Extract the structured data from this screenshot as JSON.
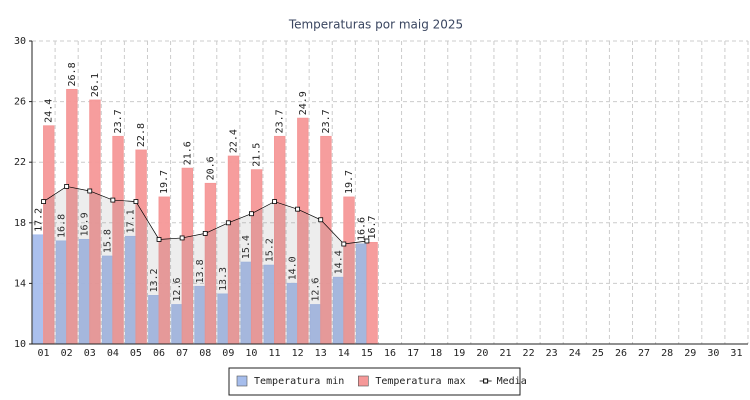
{
  "chart_data": {
    "type": "bar",
    "title": "Temperaturas por maig 2025",
    "categories": [
      "01",
      "02",
      "03",
      "04",
      "05",
      "06",
      "07",
      "08",
      "09",
      "10",
      "11",
      "12",
      "13",
      "14",
      "15",
      "16",
      "17",
      "18",
      "19",
      "20",
      "21",
      "22",
      "23",
      "24",
      "25",
      "26",
      "27",
      "28",
      "29",
      "30",
      "31"
    ],
    "series": [
      {
        "name": "Temperatura min",
        "color": "#a6bdec",
        "type": "bar",
        "values": [
          17.2,
          16.8,
          16.9,
          15.8,
          17.1,
          13.2,
          12.6,
          13.8,
          13.3,
          15.4,
          15.2,
          14.0,
          12.6,
          14.4,
          16.6,
          null,
          null,
          null,
          null,
          null,
          null,
          null,
          null,
          null,
          null,
          null,
          null,
          null,
          null,
          null,
          null
        ],
        "value_labels": [
          "17.2",
          "16.8",
          "16.9",
          "15.8",
          "17.1",
          "13.2",
          "12.6",
          "13.8",
          "13.3",
          "15.4",
          "15.2",
          "14.0",
          "12.6",
          "14.4",
          "16.6",
          null,
          null,
          null,
          null,
          null,
          null,
          null,
          null,
          null,
          null,
          null,
          null,
          null,
          null,
          null,
          null
        ]
      },
      {
        "name": "Temperatura max",
        "color": "#f59898",
        "type": "bar",
        "values": [
          24.4,
          26.8,
          26.1,
          23.7,
          22.8,
          19.7,
          21.6,
          20.6,
          22.4,
          21.5,
          23.7,
          24.9,
          23.7,
          19.7,
          16.7,
          null,
          null,
          null,
          null,
          null,
          null,
          null,
          null,
          null,
          null,
          null,
          null,
          null,
          null,
          null,
          null
        ],
        "value_labels": [
          "24.4",
          "26.8",
          "26.1",
          "23.7",
          "22.8",
          "19.7",
          "21.6",
          "20.6",
          "22.4",
          "21.5",
          "23.7",
          "24.9",
          "23.7",
          "19.7",
          "16.7",
          null,
          null,
          null,
          null,
          null,
          null,
          null,
          null,
          null,
          null,
          null,
          null,
          null,
          null,
          null,
          null
        ]
      },
      {
        "name": "Media",
        "color": "#000000",
        "type": "line",
        "values": [
          19.4,
          20.4,
          20.1,
          19.5,
          19.4,
          16.9,
          17.0,
          17.3,
          18.0,
          18.6,
          19.4,
          18.9,
          18.2,
          16.6,
          16.8,
          null,
          null,
          null,
          null,
          null,
          null,
          null,
          null,
          null,
          null,
          null,
          null,
          null,
          null,
          null,
          null
        ]
      }
    ],
    "ylim": [
      10,
      30
    ],
    "yticks": [
      10,
      14,
      18,
      22,
      26,
      30
    ],
    "grid": true,
    "legend": "bottom"
  }
}
